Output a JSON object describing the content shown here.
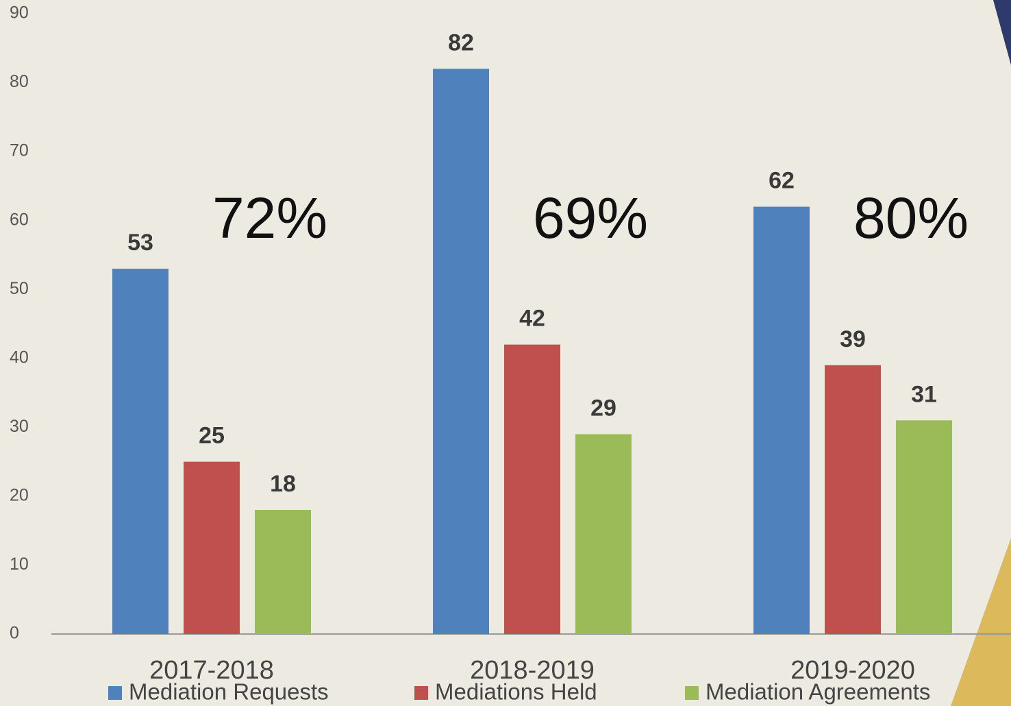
{
  "chart_data": {
    "type": "bar",
    "categories": [
      "2017-2018",
      "2018-2019",
      "2019-2020"
    ],
    "series": [
      {
        "name": "Mediation Requests",
        "color": "#4f81bd",
        "values": [
          53,
          82,
          62
        ]
      },
      {
        "name": "Mediations Held",
        "color": "#c0504d",
        "values": [
          25,
          42,
          39
        ]
      },
      {
        "name": "Mediation Agreements",
        "color": "#9bbb59",
        "values": [
          18,
          29,
          31
        ]
      }
    ],
    "annotations": [
      "72%",
      "69%",
      "80%"
    ],
    "ylim": [
      0,
      90
    ],
    "yticks": [
      0,
      10,
      20,
      30,
      40,
      50,
      60,
      70,
      80,
      90
    ],
    "grid": false
  }
}
